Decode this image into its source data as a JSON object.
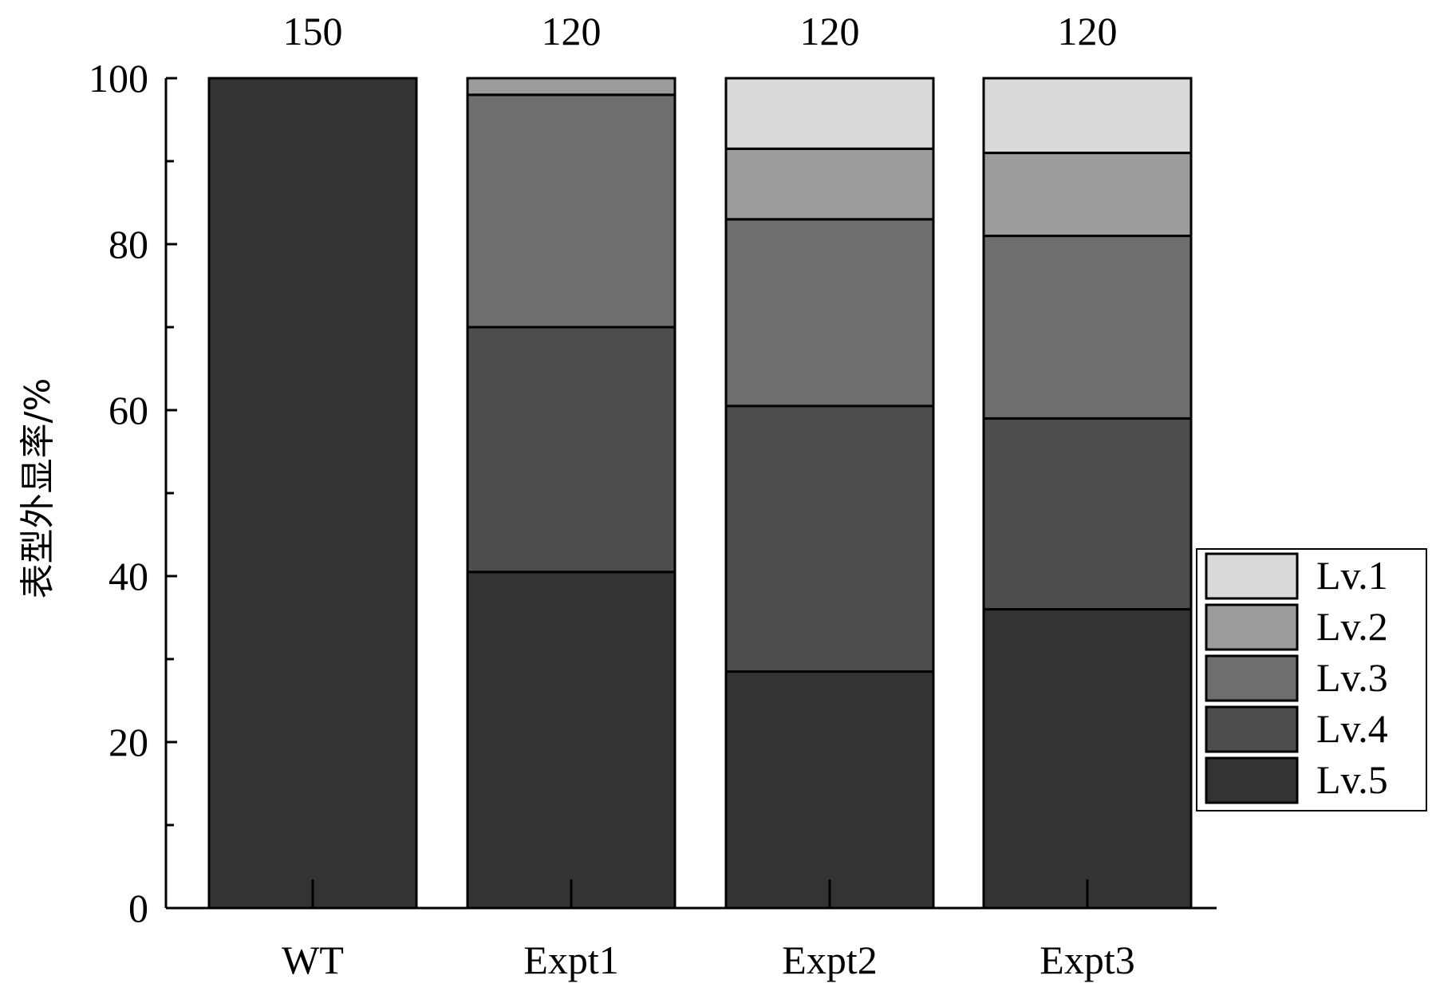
{
  "chart_data": {
    "type": "bar",
    "stacked": true,
    "categories": [
      "WT",
      "Expt1",
      "Expt2",
      "Expt3"
    ],
    "counts": [
      "150",
      "120",
      "120",
      "120"
    ],
    "ylabel": "表型外显率/%",
    "xlabel": "",
    "ylim": [
      0,
      100
    ],
    "yticks": [
      0,
      20,
      40,
      60,
      80,
      100
    ],
    "legend_position": "right",
    "series": [
      {
        "name": "Lv.5",
        "color": "#333333",
        "values": [
          100,
          40.5,
          28.5,
          36
        ]
      },
      {
        "name": "Lv.4",
        "color": "#4d4d4d",
        "values": [
          0,
          29.5,
          32,
          23
        ]
      },
      {
        "name": "Lv.3",
        "color": "#6e6e6e",
        "values": [
          0,
          28,
          22.5,
          22
        ]
      },
      {
        "name": "Lv.2",
        "color": "#9c9c9c",
        "values": [
          0,
          2,
          8.5,
          10
        ]
      },
      {
        "name": "Lv.1",
        "color": "#d9d9d9",
        "values": [
          0,
          0,
          8.5,
          9
        ]
      }
    ],
    "legend_order": [
      "Lv.1",
      "Lv.2",
      "Lv.3",
      "Lv.4",
      "Lv.5"
    ]
  }
}
